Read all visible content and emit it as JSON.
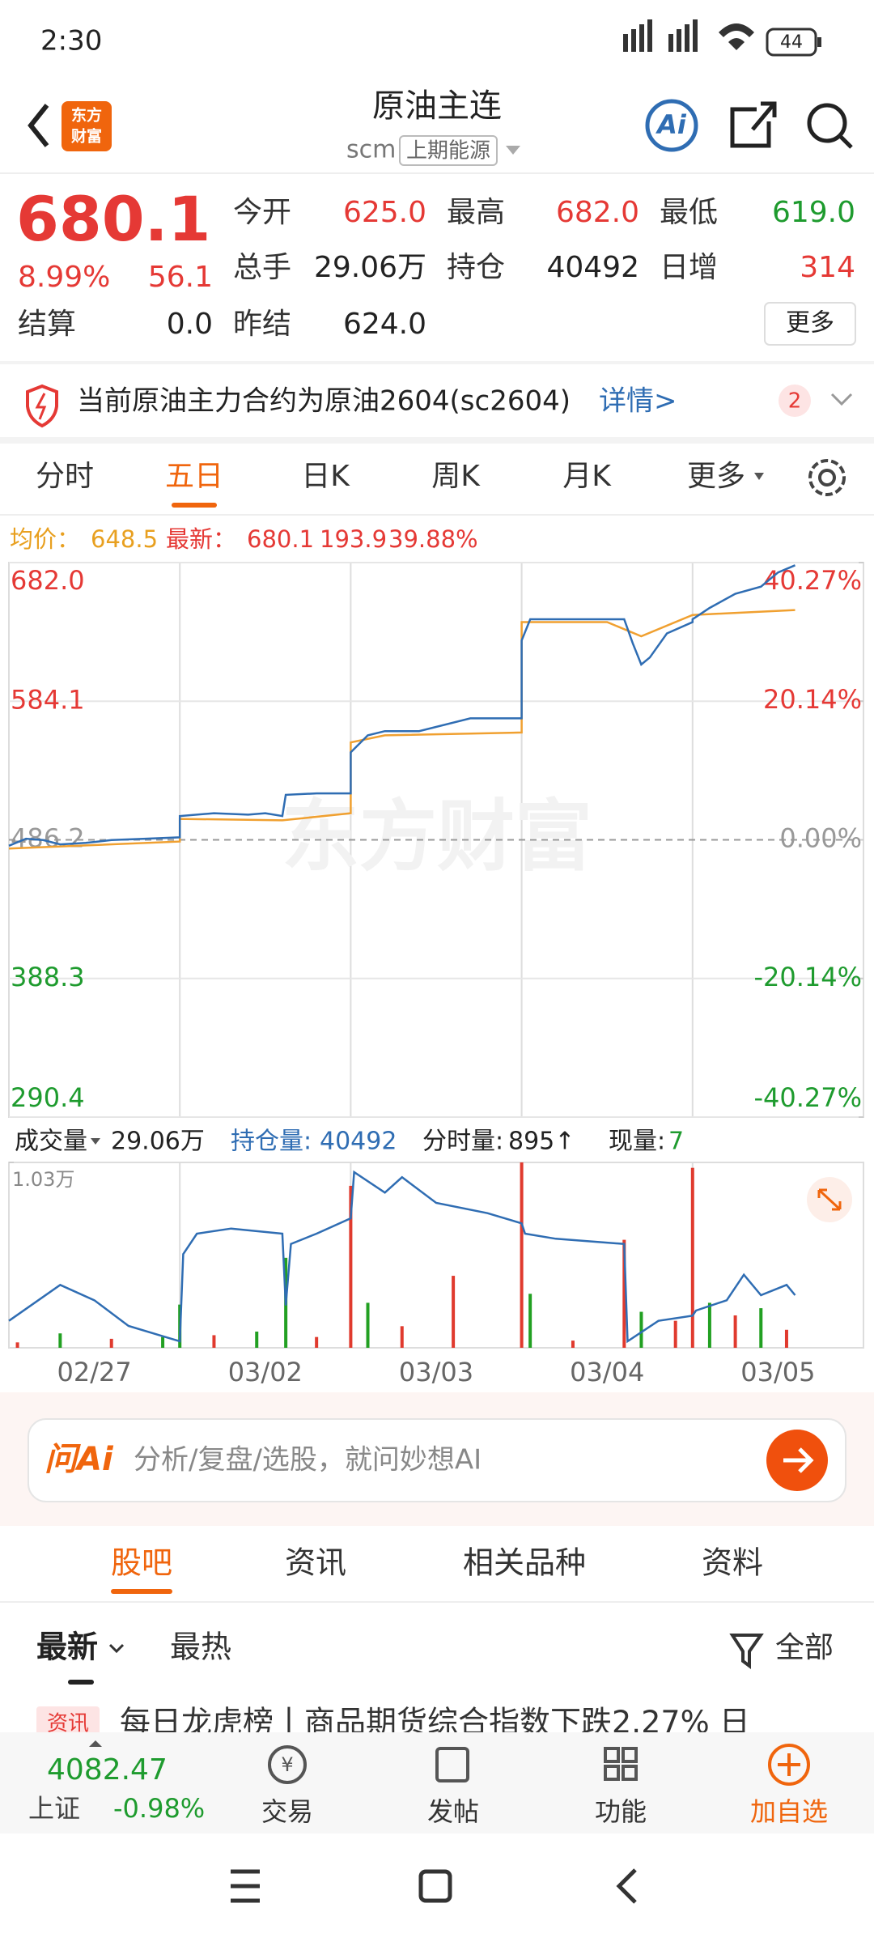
{
  "status_bar": {
    "time": "2:30",
    "battery": "44"
  },
  "header": {
    "logo": [
      "东方",
      "财富"
    ],
    "title": "原油主连",
    "code": "scm",
    "exchange": "上期能源",
    "ai": "Ai"
  },
  "quote": {
    "price": "680.1",
    "change_pct": "8.99%",
    "change": "56.1",
    "settle_label": "结算",
    "settle": "0.0",
    "fields": [
      {
        "label": "今开",
        "value": "625.0",
        "color": "#e53935"
      },
      {
        "label": "最高",
        "value": "682.0",
        "color": "#e53935"
      },
      {
        "label": "最低",
        "value": "619.0",
        "color": "#1e9b2e"
      },
      {
        "label": "总手",
        "value": "29.06万",
        "color": "#222222"
      },
      {
        "label": "持仓",
        "value": "40492",
        "color": "#222222"
      },
      {
        "label": "日增",
        "value": "314",
        "color": "#e53935"
      },
      {
        "label": "昨结",
        "value": "624.0",
        "color": "#222222"
      }
    ],
    "more": "更多"
  },
  "notice": {
    "text": "当前原油主力合约为原油2604(sc2604)",
    "link": "详情>",
    "badge": "2"
  },
  "tabs": {
    "items": [
      "分时",
      "五日",
      "日K",
      "周K",
      "月K",
      "更多"
    ],
    "active": 1
  },
  "chart_info": {
    "avg_label": "均价：",
    "avg": "648.5",
    "last_label": "最新：",
    "last": "680.1",
    "change": "193.9",
    "pct": "39.88%"
  },
  "chart_data": [
    {
      "type": "line",
      "watermark": "东方财富",
      "categories": [
        "02/27",
        "03/02",
        "03/03",
        "03/04",
        "03/05"
      ],
      "xlim": [
        0,
        5
      ],
      "ylim": [
        290.4,
        682.0
      ],
      "yticks": [
        {
          "value": 682.0,
          "label": "682.0"
        },
        584.1,
        486.2,
        388.3,
        290.4
      ],
      "y2lim": [
        -40.27,
        40.27
      ],
      "y2ticks": [
        {
          "value": 40.27,
          "label": "40.27%"
        },
        {
          "value": 20.14,
          "label": "20.14%"
        },
        {
          "value": 0,
          "label": "0.00%"
        },
        {
          "value": -20.14,
          "label": "-20.14%"
        },
        {
          "value": -40.27,
          "label": "-40.27%"
        }
      ],
      "series": [
        {
          "color": "#2f6db3",
          "x": [
            0,
            0.1,
            0.2,
            0.3,
            0.45,
            0.6,
            0.8,
            1.0,
            1.0,
            1.2,
            1.4,
            1.5,
            1.6,
            1.62,
            1.8,
            2.0,
            2.0,
            2.1,
            2.2,
            2.4,
            2.7,
            3.0,
            3.0,
            3.05,
            3.3,
            3.6,
            3.65,
            3.7,
            3.75,
            3.85,
            4.0,
            4.0,
            4.1,
            4.25,
            4.4,
            4.5,
            4.6
          ],
          "values": [
            482,
            487,
            486,
            483,
            484,
            486,
            487,
            488,
            503,
            505,
            504,
            505,
            503,
            518,
            519,
            519,
            548,
            560,
            563,
            563,
            572,
            572,
            627,
            642,
            642,
            642,
            625,
            610,
            615,
            632,
            640,
            642,
            650,
            660,
            665,
            675,
            680.1
          ]
        },
        {
          "color": "#f0a030",
          "x": [
            0,
            1.0,
            1.0,
            1.6,
            2.0,
            2.0,
            2.2,
            3.0,
            3.0,
            3.5,
            3.7,
            4.0,
            4.6
          ],
          "values": [
            480,
            485,
            501,
            500,
            505,
            555,
            560,
            562,
            640,
            640,
            630,
            645,
            648.5
          ]
        }
      ]
    },
    {
      "type": "bar",
      "ylim": [
        0,
        10300
      ],
      "yticks": [
        {
          "value": 10300,
          "label": "1.03万"
        }
      ],
      "xlim": [
        0,
        5
      ],
      "x": [
        0.05,
        0.3,
        0.6,
        0.9,
        1.0,
        1.2,
        1.45,
        1.62,
        1.8,
        2.0,
        2.1,
        2.3,
        2.6,
        3.0,
        3.05,
        3.3,
        3.6,
        3.7,
        3.9,
        4.0,
        4.1,
        4.25,
        4.4,
        4.55
      ],
      "values": [
        300,
        800,
        500,
        600,
        2400,
        700,
        900,
        5000,
        600,
        9000,
        2500,
        1200,
        4000,
        10300,
        3000,
        400,
        6000,
        2000,
        1500,
        10000,
        2500,
        1800,
        2200,
        1000
      ],
      "colors": [
        "#e03a2e",
        "#22a022",
        "#e03a2e",
        "#22a022",
        "#22a022",
        "#e03a2e",
        "#22a022",
        "#22a022",
        "#e03a2e",
        "#e03a2e",
        "#22a022",
        "#e03a2e",
        "#e03a2e",
        "#e03a2e",
        "#22a022",
        "#e03a2e",
        "#e03a2e",
        "#22a022",
        "#e03a2e",
        "#e03a2e",
        "#22a022",
        "#e03a2e",
        "#22a022",
        "#e03a2e"
      ],
      "oi": {
        "color": "#2f6db3",
        "x": [
          0,
          0.3,
          0.5,
          0.7,
          0.9,
          1.0,
          1.02,
          1.1,
          1.3,
          1.6,
          1.62,
          1.65,
          1.8,
          2.0,
          2.02,
          2.2,
          2.3,
          2.5,
          2.8,
          3.0,
          3.02,
          3.2,
          3.6,
          3.62,
          3.8,
          4.0,
          4.02,
          4.2,
          4.3,
          4.4,
          4.55,
          4.6
        ],
        "values": [
          38200,
          38900,
          38600,
          38100,
          37900,
          37800,
          39500,
          39900,
          40000,
          39900,
          38500,
          39700,
          39900,
          40200,
          41100,
          40700,
          41000,
          40500,
          40300,
          40100,
          39900,
          39800,
          39700,
          37800,
          38200,
          38300,
          38400,
          38600,
          39100,
          38700,
          38900,
          38700
        ]
      }
    }
  ],
  "volume_header": {
    "vol_label": "成交量",
    "vol": "29.06万",
    "oi_label": "持仓量:",
    "oi": "40492",
    "tick_label": "分时量:",
    "tick": "895↑",
    "now_label": "现量:",
    "now": "7"
  },
  "ai_box": {
    "brand": "问Ai",
    "placeholder": "分析/复盘/选股，就问妙想AI"
  },
  "sub_tabs": {
    "items": [
      "股吧",
      "资讯",
      "相关品种",
      "资料"
    ],
    "active": 0
  },
  "feed": {
    "sorts": [
      "最新",
      "最热"
    ],
    "filter": "全部",
    "item_tag": "资讯",
    "item_title": "每日龙虎榜丨商品期货综合指数下跌2.27% 日"
  },
  "bottom_bar": {
    "index_value": "4082.47",
    "index_name": "上证",
    "index_change": "-0.98%",
    "items": [
      "交易",
      "发帖",
      "功能",
      "加自选"
    ]
  }
}
